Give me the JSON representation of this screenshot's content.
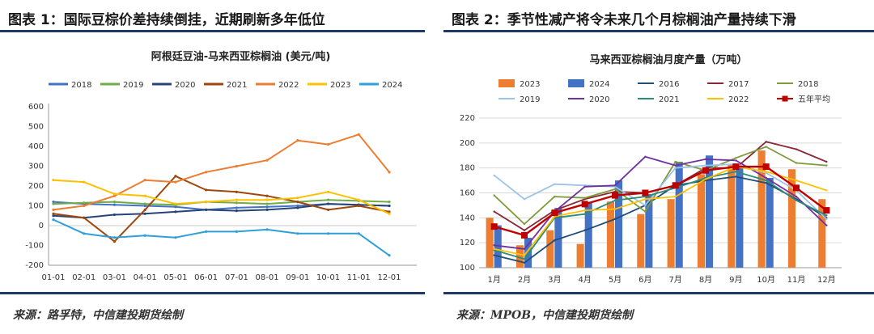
{
  "figures": [
    {
      "heading": "图表 1：国际豆棕价差持续倒挂，近期刷新多年低位",
      "source": "来源：路孚特，中信建投期货绘制"
    },
    {
      "heading": "图表 2：季节性减产将令未来几个月棕榈油产量持续下滑",
      "source": "来源：MPOB，中信建投期货绘制"
    }
  ],
  "chart_data": [
    {
      "type": "line",
      "title": "阿根廷豆油-马来西亚棕榈油 (美元/吨)",
      "xlabel": "",
      "ylabel": "",
      "ylim": [
        -200,
        600
      ],
      "yticks": [
        "600",
        "500",
        "400",
        "300",
        "200",
        "100",
        "0",
        "-100",
        "-200"
      ],
      "xticks": [
        "01-01",
        "02-01",
        "03-01",
        "04-01",
        "05-01",
        "06-01",
        "07-01",
        "08-01",
        "09-01",
        "10-01",
        "11-01",
        "12-01"
      ],
      "legend_position": "top",
      "grid": false,
      "series": [
        {
          "name": "2018",
          "color": "#4472c4",
          "values": [
            120,
            110,
            105,
            100,
            95,
            80,
            90,
            95,
            100,
            110,
            105,
            100
          ]
        },
        {
          "name": "2019",
          "color": "#70ad47",
          "values": [
            110,
            115,
            120,
            110,
            105,
            120,
            115,
            110,
            120,
            130,
            125,
            120
          ]
        },
        {
          "name": "2020",
          "color": "#264478",
          "values": [
            50,
            40,
            55,
            60,
            70,
            80,
            75,
            80,
            90,
            110,
            105,
            100
          ]
        },
        {
          "name": "2021",
          "color": "#9e480e",
          "values": [
            60,
            40,
            -80,
            80,
            250,
            180,
            170,
            150,
            120,
            80,
            100,
            70
          ]
        },
        {
          "name": "2022",
          "color": "#ed7d31",
          "values": [
            80,
            100,
            150,
            230,
            220,
            270,
            300,
            330,
            430,
            410,
            460,
            270
          ]
        },
        {
          "name": "2023",
          "color": "#ffc000",
          "values": [
            230,
            220,
            160,
            150,
            110,
            120,
            130,
            130,
            140,
            170,
            130,
            60
          ]
        },
        {
          "name": "2024",
          "color": "#2e9fd8",
          "values": [
            30,
            -40,
            -60,
            -50,
            -60,
            -30,
            -30,
            -20,
            -40,
            -40,
            -40,
            -150
          ]
        }
      ]
    },
    {
      "type": "bar",
      "title": "马来西亚棕榈油月度产量（万吨）",
      "xlabel": "",
      "ylabel": "",
      "ylim": [
        100,
        220
      ],
      "yticks": [
        "220",
        "200",
        "180",
        "160",
        "140",
        "120",
        "100"
      ],
      "categories": [
        "1月",
        "2月",
        "3月",
        "4月",
        "5月",
        "6月",
        "7月",
        "8月",
        "9月",
        "10月",
        "11月",
        "12月"
      ],
      "legend_position": "top",
      "grid": true,
      "bar_series": [
        {
          "name": "2023",
          "color": "#ed7d31",
          "values": [
            140,
            118,
            130,
            119,
            153,
            143,
            155,
            175,
            183,
            194,
            179,
            155
          ]
        },
        {
          "name": "2024",
          "color": "#4472c4",
          "values": [
            134,
            124,
            148,
            152,
            170,
            159,
            185,
            190,
            182,
            172,
            null,
            null
          ]
        }
      ],
      "series": [
        {
          "name": "2016",
          "color": "#1f4e79",
          "values": [
            110,
            104,
            122,
            130,
            139,
            150,
            166,
            170,
            173,
            168,
            155,
            140
          ]
        },
        {
          "name": "2017",
          "color": "#8b2635",
          "values": [
            145,
            130,
            146,
            155,
            161,
            160,
            166,
            180,
            180,
            201,
            195,
            185
          ]
        },
        {
          "name": "2018",
          "color": "#7f9a3a",
          "values": [
            158,
            135,
            157,
            156,
            163,
            145,
            185,
            178,
            188,
            197,
            184,
            182
          ]
        },
        {
          "name": "2019",
          "color": "#9dc3e6",
          "values": [
            174,
            155,
            167,
            166,
            165,
            150,
            180,
            182,
            183,
            176,
            162,
            139
          ]
        },
        {
          "name": "2020",
          "color": "#7030a0",
          "values": [
            118,
            115,
            145,
            165,
            166,
            189,
            182,
            187,
            186,
            172,
            157,
            134
          ]
        },
        {
          "name": "2021",
          "color": "#2e8b7a",
          "values": [
            114,
            107,
            140,
            143,
            154,
            157,
            164,
            172,
            177,
            170,
            154,
            142
          ]
        },
        {
          "name": "2022",
          "color": "#ffc000",
          "values": [
            115,
            110,
            141,
            146,
            147,
            155,
            157,
            171,
            181,
            177,
            170,
            162
          ]
        },
        {
          "name": "五年平均",
          "color": "#c00000",
          "marker": "square",
          "values": [
            133,
            126,
            144,
            151,
            158,
            160,
            166,
            178,
            181,
            181,
            164,
            146
          ]
        }
      ]
    }
  ]
}
